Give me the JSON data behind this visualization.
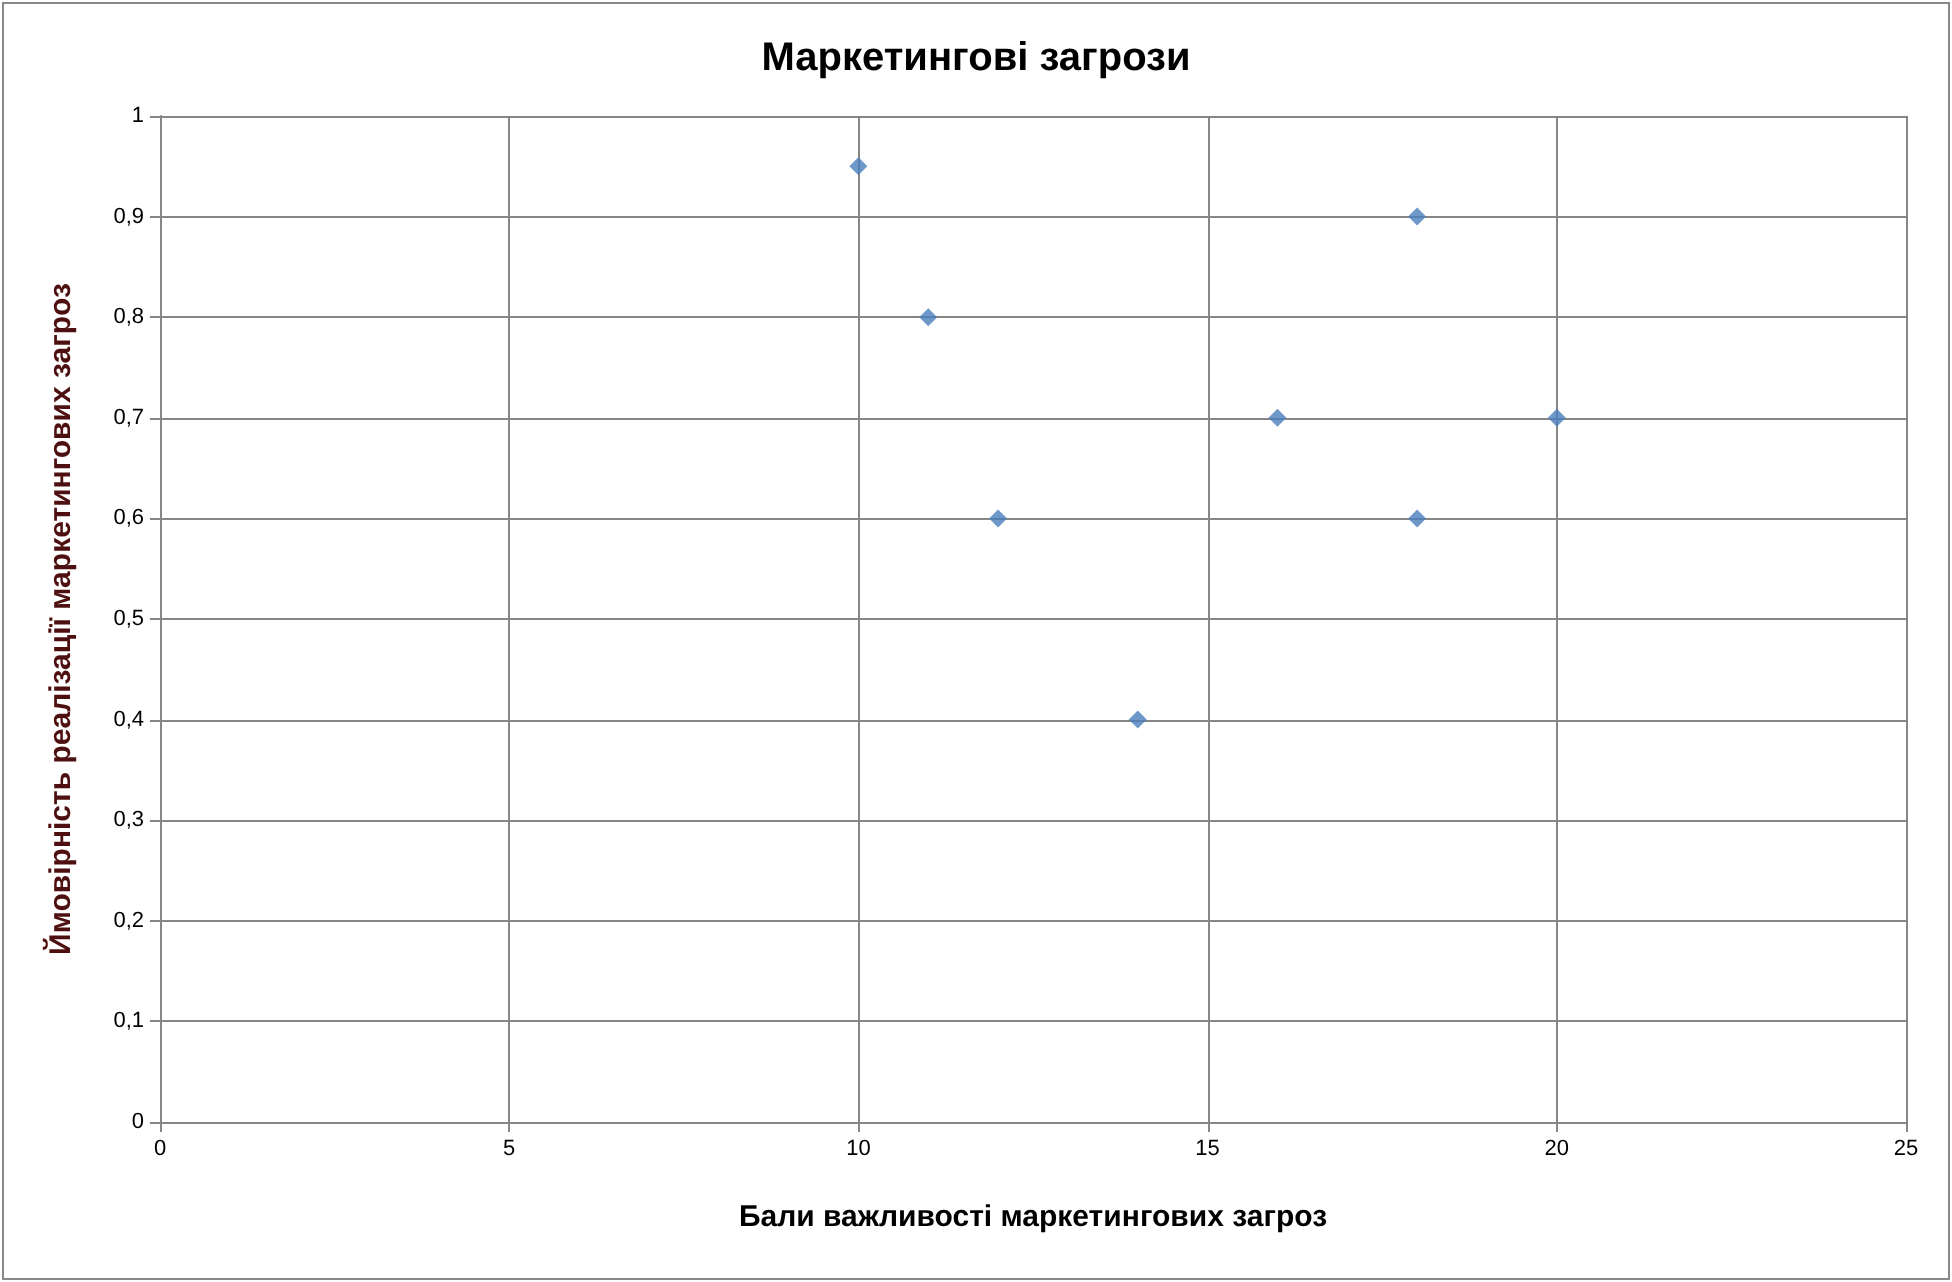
{
  "chart_data": {
    "type": "scatter",
    "title": "Маркетингові загрози",
    "xlabel": "Бали важливості маркетингових загроз",
    "ylabel": "Ймовірність реалізації маркетингових загроз",
    "x": [
      10,
      11,
      12,
      14,
      16,
      18,
      18,
      20
    ],
    "values": [
      0.95,
      0.8,
      0.6,
      0.4,
      0.7,
      0.9,
      0.6,
      0.7
    ],
    "color": "#4a7ebb",
    "marker": "diamond",
    "grid": true,
    "xlim": [
      0,
      25
    ],
    "xticks": [
      0,
      5,
      10,
      15,
      20,
      25
    ],
    "ylim": [
      0,
      1
    ],
    "yticks": [
      0,
      {
        "value": 0.1,
        "label": "0,1"
      },
      {
        "value": 0.2,
        "label": "0,2"
      },
      {
        "value": 0.3,
        "label": "0,3"
      },
      {
        "value": 0.4,
        "label": "0,4"
      },
      {
        "value": 0.5,
        "label": "0,5"
      },
      {
        "value": 0.6,
        "label": "0,6"
      },
      {
        "value": 0.7,
        "label": "0,7"
      },
      {
        "value": 0.8,
        "label": "0,8"
      },
      {
        "value": 0.9,
        "label": "0,9"
      },
      1
    ]
  }
}
